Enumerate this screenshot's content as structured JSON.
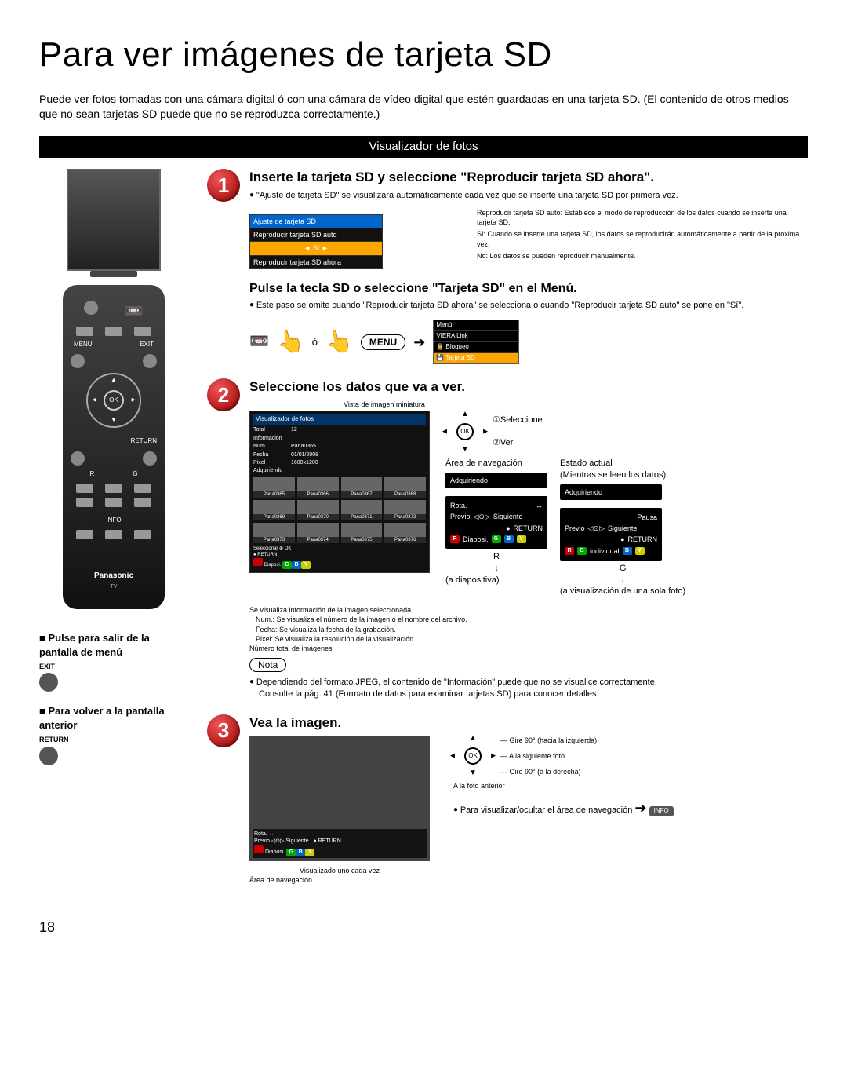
{
  "page_number": "18",
  "title": "Para ver imágenes de tarjeta SD",
  "intro": "Puede ver fotos tomadas con una cámara digital ó con una cámara de vídeo digital que estén guardadas en una tarjeta SD. (El contenido de otros medios que no sean tarjetas SD puede que no se reproduzca correctamente.)",
  "banner": "Visualizador de fotos",
  "remote": {
    "menu": "MENU",
    "exit": "EXIT",
    "ok": "OK",
    "return": "RETURN",
    "r": "R",
    "g": "G",
    "info": "INFO",
    "brand": "Panasonic",
    "tv": "TV"
  },
  "step1": {
    "title": "Inserte la tarjeta SD y seleccione \"Reproducir tarjeta SD ahora\".",
    "bullet": "\"Ajuste de tarjeta SD\" se visualizará automáticamente cada vez que se inserte una tarjeta SD por primera vez.",
    "menu": {
      "hdr": "Ajuste de tarjeta SD",
      "row1": "Reproducir tarjeta SD auto",
      "row2": "Sí",
      "row3": "Reproducir tarjeta SD ahora"
    },
    "desc": {
      "l1a": "Reproducir tarjeta SD auto:",
      "l1b": "Establece el modo de reproducción de los datos cuando se inserta una tarjeta SD.",
      "l2a": "Sí:",
      "l2b": "Cuando se inserte una tarjeta SD, los datos se reproducirán automáticamente a partir de la próxima vez.",
      "l3a": "No:",
      "l3b": "Los datos se pueden reproducir manualmente."
    },
    "sub_title": "Pulse la tecla SD o seleccione \"Tarjeta SD\" en el Menú.",
    "sub_bullet": "Este paso se omite cuando \"Reproducir tarjeta SD ahora\" se selecciona o cuando \"Reproducir tarjeta SD auto\" se pone en \"Sí\".",
    "o": "ó",
    "menu_btn": "MENU",
    "tv_menu": {
      "r1": "Menú",
      "r2": "VIERA Link",
      "r3": "Bloqueo",
      "r4": "Tarjeta SD"
    }
  },
  "step2": {
    "title": "Seleccione los datos que va a ver.",
    "thumb_label": "Vista de imagen miniatura",
    "sel1": "①Seleccione",
    "sel2": "②Ver",
    "ok": "OK",
    "panel": {
      "title": "Visualizador de fotos",
      "total_k": "Total",
      "total_v": "12",
      "info_k": "Información",
      "num_k": "Num.",
      "num_v": "Pana0365",
      "date_k": "Fecha",
      "date_v": "01/01/2008",
      "pix_k": "Pixel",
      "pix_v": "1600x1200",
      "adq": "Adquiriendo",
      "sel": "Seleccionar",
      "okx": "OK",
      "ret": "RETURN",
      "diap": "Diaposi."
    },
    "thumbs": [
      "Pana0365",
      "Pana0366",
      "Pana0367",
      "Pana0368",
      "Pana0369",
      "Pana0370",
      "Pana0371",
      "Pana0372",
      "Pana0373",
      "Pana0374",
      "Pana0375",
      "Pana0376"
    ],
    "info_lines": {
      "l1": "Se visualiza información de la imagen seleccionada.",
      "num": "Num.: Se visualiza el número de la imagen ó el nombre del archivo.",
      "fecha": "Fecha: Se visualiza la fecha de la grabación.",
      "pixel": "Pixel: Se visualiza la resolución de la visualización.",
      "total": "Número total de imágenes"
    },
    "nav": {
      "area": "Área de navegación",
      "estado": "Estado actual",
      "estado_sub": "(Mientras se leen los datos)",
      "adq": "Adquiriendo",
      "rota": "Rota.",
      "pausa": "Pausa",
      "previo": "Previo",
      "sig": "Siguiente",
      "ret": "RETURN",
      "diap": "Diaposi.",
      "indiv": "individual",
      "r_note": "(a diapositiva)",
      "g_note": "(a visualización de una sola foto)"
    },
    "nota": "Nota",
    "nota_b1": "Dependiendo del formato JPEG, el contenido de \"Información\" puede que no se visualice correctamente.",
    "nota_l2": "Consulte la pág. 41 (Formato de datos para examinar tarjetas SD) para conocer detalles."
  },
  "step3": {
    "title": "Vea la imagen.",
    "vis": "Visualizado uno cada vez",
    "area": "Área de navegación",
    "ov_rota": "Rota.",
    "ov_previo": "Previo",
    "ov_sig": "Siguiente",
    "ov_ret": "RETURN",
    "ov_diap": "Diaposi.",
    "g1": "Gire 90° (hacia la izquierda)",
    "g2": "A la siguiente foto",
    "g3": "Gire 90° (a la derecha)",
    "g4": "A la foto anterior",
    "g5": "Para visualizar/ocultar el área de navegación",
    "info": "INFO",
    "ok": "OK"
  },
  "exit": {
    "t1": "Pulse para salir de la pantalla de menú",
    "b1": "EXIT",
    "t2": "Para volver a la pantalla anterior",
    "b2": "RETURN"
  }
}
